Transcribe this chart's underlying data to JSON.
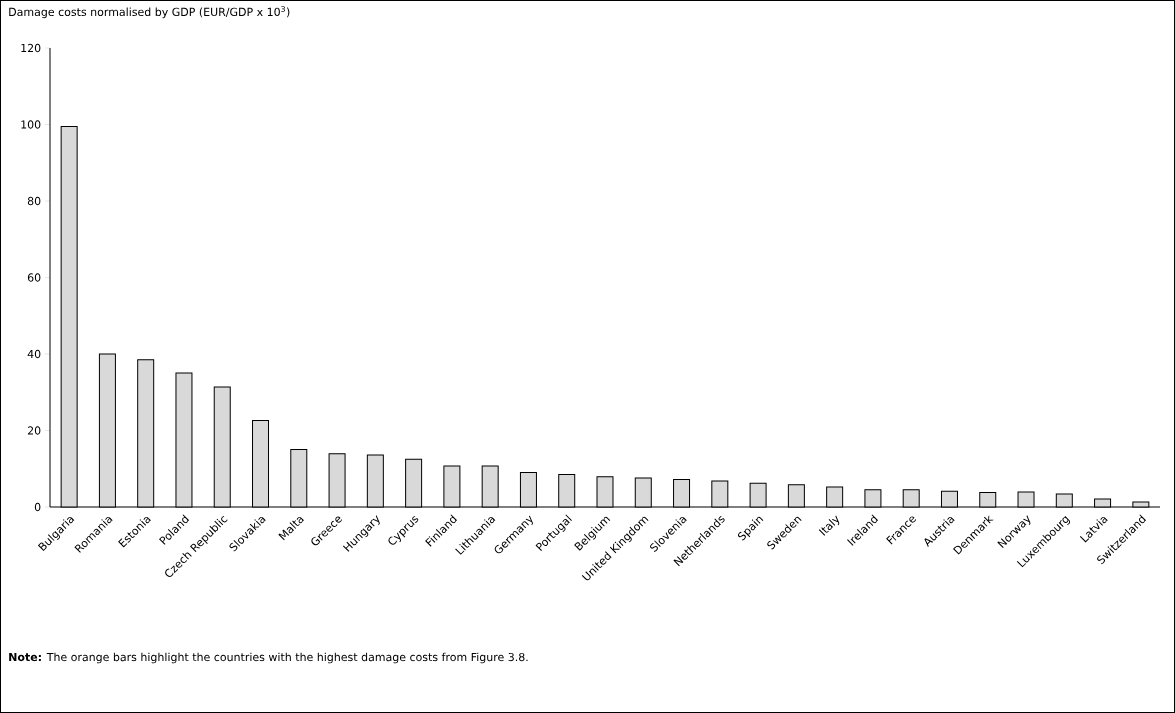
{
  "chart_data": {
    "type": "bar",
    "title": "Damage costs normalised by GDP (EUR/GDP x 10$^{3}$)",
    "categories": [
      "Bulgaria",
      "Romania",
      "Estonia",
      "Poland",
      "Czech Republic",
      "Slovakia",
      "Malta",
      "Greece",
      "Hungary",
      "Cyprus",
      "Finland",
      "Lithuania",
      "Germany",
      "Portugal",
      "Belgium",
      "United Kingdom",
      "Slovenia",
      "Netherlands",
      "Spain",
      "Sweden",
      "Italy",
      "Ireland",
      "France",
      "Austria",
      "Denmark",
      "Norway",
      "Luxembourg",
      "Latvia",
      "Switzerland"
    ],
    "values": [
      99.5,
      40,
      38.5,
      35,
      31.4,
      22.6,
      15,
      13.9,
      13.6,
      12.5,
      10.7,
      10.7,
      9,
      8.5,
      7.9,
      7.6,
      7.2,
      6.8,
      6.2,
      5.8,
      5.2,
      4.5,
      4.5,
      4.1,
      3.8,
      3.9,
      3.4,
      2.1,
      1.3
    ],
    "color": "#d9d9d9",
    "ylim": [
      0,
      120
    ],
    "yticks": [
      0,
      20,
      40,
      60,
      80,
      100,
      120
    ],
    "grid": false,
    "annotations": [
      "**Note:**     The orange bars highlight the countries with the highest damage costs from Figure 3.8."
    ]
  }
}
